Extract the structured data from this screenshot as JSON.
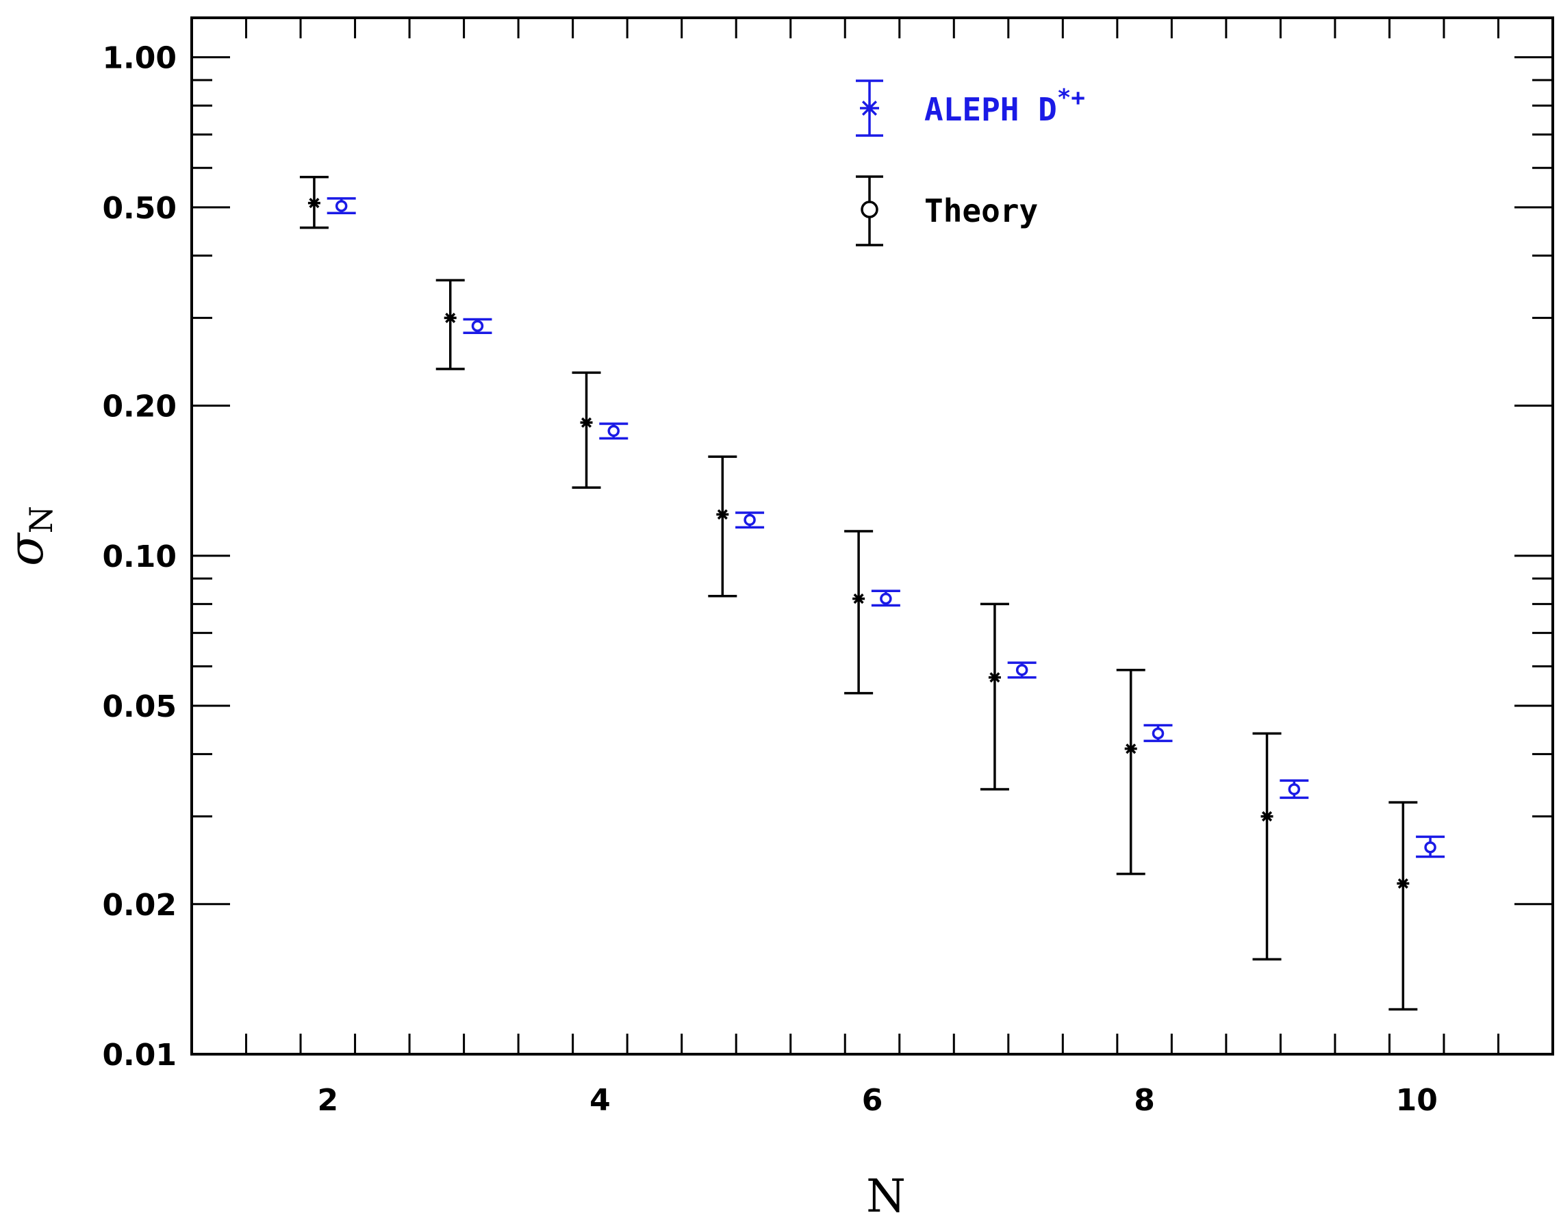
{
  "chart_data": {
    "type": "scatter",
    "xlabel": "N",
    "ylabel": "σ",
    "ylabel_subscript": "N",
    "xlim": [
      1.0,
      11.0
    ],
    "ylim": [
      0.01,
      1.2
    ],
    "yscale": "log",
    "xticks": [
      2,
      4,
      6,
      8,
      10
    ],
    "xtick_labels": [
      "2",
      "4",
      "6",
      "8",
      "10"
    ],
    "yticks": [
      0.01,
      0.02,
      0.05,
      0.1,
      0.2,
      0.5,
      1.0
    ],
    "ytick_labels": [
      "0.01",
      "0.02",
      "0.05",
      "0.10",
      "0.20",
      "0.50",
      "1.00"
    ],
    "grid": false,
    "legend_position": "top-center",
    "series": [
      {
        "name": "ALEPH D",
        "name_superscript": "*+",
        "color": "#1a1ae6",
        "marker": "asterisk",
        "points": [
          {
            "x": 1.9,
            "y": 0.51,
            "lo": 0.455,
            "hi": 0.575
          },
          {
            "x": 2.9,
            "y": 0.3,
            "lo": 0.237,
            "hi": 0.357
          },
          {
            "x": 3.9,
            "y": 0.185,
            "lo": 0.137,
            "hi": 0.233
          },
          {
            "x": 4.9,
            "y": 0.121,
            "lo": 0.083,
            "hi": 0.158
          },
          {
            "x": 5.9,
            "y": 0.082,
            "lo": 0.053,
            "hi": 0.112
          },
          {
            "x": 6.9,
            "y": 0.057,
            "lo": 0.034,
            "hi": 0.08
          },
          {
            "x": 7.9,
            "y": 0.041,
            "lo": 0.023,
            "hi": 0.059
          },
          {
            "x": 8.9,
            "y": 0.03,
            "lo": 0.0155,
            "hi": 0.044
          },
          {
            "x": 9.9,
            "y": 0.022,
            "lo": 0.0123,
            "hi": 0.032
          }
        ]
      },
      {
        "name": "Theory",
        "color": "#000000",
        "marker": "circle",
        "points": [
          {
            "x": 2.1,
            "y": 0.503,
            "lo": 0.487,
            "hi": 0.521
          },
          {
            "x": 3.1,
            "y": 0.289,
            "lo": 0.28,
            "hi": 0.298
          },
          {
            "x": 4.1,
            "y": 0.178,
            "lo": 0.172,
            "hi": 0.184
          },
          {
            "x": 5.1,
            "y": 0.118,
            "lo": 0.114,
            "hi": 0.122
          },
          {
            "x": 6.1,
            "y": 0.082,
            "lo": 0.0795,
            "hi": 0.085
          },
          {
            "x": 7.1,
            "y": 0.059,
            "lo": 0.057,
            "hi": 0.061
          },
          {
            "x": 8.1,
            "y": 0.044,
            "lo": 0.0425,
            "hi": 0.0457
          },
          {
            "x": 9.1,
            "y": 0.034,
            "lo": 0.0327,
            "hi": 0.0354
          },
          {
            "x": 10.1,
            "y": 0.026,
            "lo": 0.0249,
            "hi": 0.0273
          }
        ]
      }
    ]
  }
}
